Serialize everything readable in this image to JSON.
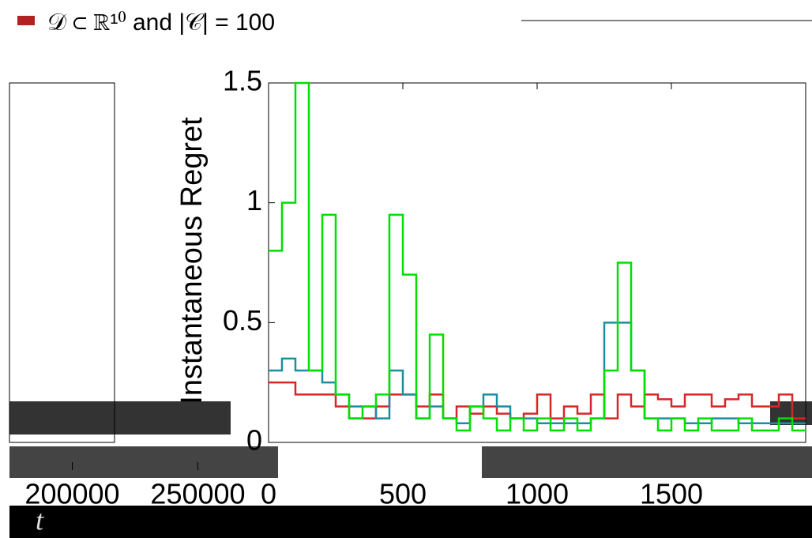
{
  "chart_data": [
    {
      "type": "axes",
      "xlabel": "t",
      "xlim": [
        175000,
        275000
      ],
      "xticks": [
        200000,
        250000
      ],
      "series": []
    },
    {
      "type": "line",
      "title": "𝒟 ⊂ ℝ¹⁰ and |𝒞| = 100",
      "ylabel": "Instantaneous Regret",
      "x": [
        0,
        50,
        100,
        150,
        200,
        250,
        300,
        350,
        400,
        450,
        500,
        550,
        600,
        650,
        700,
        750,
        800,
        850,
        900,
        950,
        1000,
        1050,
        1100,
        1150,
        1200,
        1250,
        1300,
        1350,
        1400,
        1450,
        1500,
        1550,
        1600,
        1650,
        1700,
        1750,
        1800,
        1850,
        1900,
        1950,
        2000
      ],
      "xlim": [
        0,
        2000
      ],
      "xticks": [
        0,
        500,
        1000,
        1500
      ],
      "ylim": [
        0,
        1.5
      ],
      "yticks": [
        0,
        0.5,
        1,
        1.5
      ],
      "series": [
        {
          "color": "#d62728",
          "values": [
            0.25,
            0.25,
            0.2,
            0.2,
            0.2,
            0.15,
            0.1,
            0.1,
            0.15,
            0.2,
            0.2,
            0.15,
            0.2,
            0.1,
            0.15,
            0.12,
            0.15,
            0.12,
            0.1,
            0.12,
            0.2,
            0.1,
            0.15,
            0.12,
            0.2,
            0.1,
            0.2,
            0.15,
            0.2,
            0.18,
            0.15,
            0.2,
            0.2,
            0.15,
            0.18,
            0.2,
            0.15,
            0.15,
            0.2,
            0.1,
            0.1
          ]
        },
        {
          "color": "#1a8fa0",
          "values": [
            0.3,
            0.35,
            0.3,
            0.3,
            0.25,
            0.2,
            0.15,
            0.15,
            0.1,
            0.3,
            0.2,
            0.1,
            0.15,
            0.1,
            0.08,
            0.15,
            0.2,
            0.15,
            0.1,
            0.1,
            0.08,
            0.08,
            0.08,
            0.08,
            0.1,
            0.5,
            0.5,
            0.3,
            0.1,
            0.1,
            0.1,
            0.08,
            0.08,
            0.1,
            0.1,
            0.08,
            0.08,
            0.08,
            0.08,
            0.08,
            0.08
          ]
        },
        {
          "color": "#00e000",
          "values": [
            0.8,
            1.0,
            1.5,
            0.3,
            0.95,
            0.2,
            0.1,
            0.15,
            0.2,
            0.95,
            0.7,
            0.1,
            0.45,
            0.1,
            0.05,
            0.15,
            0.1,
            0.05,
            0.1,
            0.05,
            0.1,
            0.05,
            0.1,
            0.05,
            0.1,
            0.3,
            0.75,
            0.3,
            0.1,
            0.05,
            0.1,
            0.05,
            0.1,
            0.05,
            0.05,
            0.1,
            0.05,
            0.05,
            0.1,
            0.05,
            0.05
          ]
        }
      ]
    }
  ]
}
